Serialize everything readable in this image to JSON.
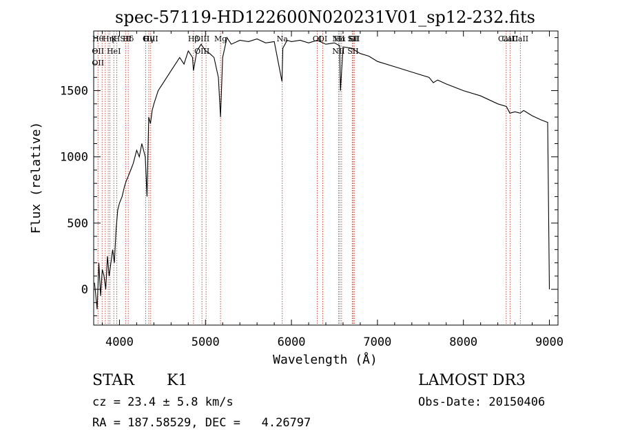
{
  "chart_data": {
    "type": "line",
    "title": "spec-57119-HD122600N020231V01_sp12-232.fits",
    "xlabel": "Wavelength (Å)",
    "ylabel": "Flux (relative)",
    "xlim": [
      3700,
      9100
    ],
    "ylim": [
      -270,
      1950
    ],
    "x_ticks": [
      4000,
      5000,
      6000,
      7000,
      8000,
      9000
    ],
    "y_ticks": [
      0,
      500,
      1000,
      1500
    ],
    "grid": false,
    "series": [
      {
        "x": [
          3710,
          3740,
          3760,
          3780,
          3800,
          3820,
          3840,
          3860,
          3880,
          3900,
          3920,
          3940,
          3960,
          3980,
          4000,
          4030,
          4060,
          4080,
          4100,
          4130,
          4160,
          4200,
          4230,
          4260,
          4300,
          4320,
          4340,
          4360,
          4380,
          4400,
          4450,
          4500,
          4550,
          4600,
          4650,
          4700,
          4750,
          4800,
          4850,
          4860,
          4900,
          4950,
          5000,
          5050,
          5100,
          5150,
          5175,
          5200,
          5250,
          5300,
          5400,
          5500,
          5600,
          5700,
          5800,
          5890,
          5900,
          5950,
          6000,
          6100,
          6200,
          6300,
          6400,
          6500,
          6560,
          6570,
          6600,
          6700,
          6800,
          6900,
          7000,
          7200,
          7400,
          7600,
          7650,
          7700,
          7800,
          8000,
          8200,
          8400,
          8500,
          8540,
          8600,
          8660,
          8700,
          8800,
          8900,
          8980,
          9000
        ],
        "y": [
          50,
          -150,
          200,
          -50,
          150,
          100,
          0,
          250,
          100,
          200,
          300,
          200,
          450,
          600,
          650,
          700,
          780,
          820,
          850,
          900,
          950,
          1050,
          1000,
          1100,
          1000,
          700,
          1300,
          1250,
          1350,
          1400,
          1500,
          1550,
          1600,
          1650,
          1700,
          1750,
          1700,
          1800,
          1750,
          1650,
          1800,
          1850,
          1800,
          1780,
          1750,
          1600,
          1300,
          1750,
          1900,
          1850,
          1880,
          1870,
          1890,
          1860,
          1870,
          1570,
          1820,
          1880,
          1870,
          1880,
          1860,
          1880,
          1850,
          1860,
          1840,
          1500,
          1830,
          1820,
          1780,
          1760,
          1720,
          1680,
          1640,
          1600,
          1560,
          1580,
          1550,
          1500,
          1460,
          1400,
          1380,
          1330,
          1340,
          1330,
          1350,
          1310,
          1280,
          1260,
          0
        ]
      }
    ],
    "lines": [
      {
        "x": 3750,
        "labels": [
          "Hθ",
          "OII",
          "OII"
        ]
      },
      {
        "x": 3798,
        "labels": []
      },
      {
        "x": 3835,
        "labels": []
      },
      {
        "x": 3869,
        "labels": [
          "Hη"
        ]
      },
      {
        "x": 3889,
        "labels": []
      },
      {
        "x": 3934,
        "labels": [
          "K",
          "HeI"
        ]
      },
      {
        "x": 3969,
        "labels": [
          "H"
        ]
      },
      {
        "x": 4071,
        "labels": [
          "SII"
        ]
      },
      {
        "x": 4102,
        "labels": [
          "Hδ"
        ]
      },
      {
        "x": 4304,
        "labels": [
          "G"
        ]
      },
      {
        "x": 4341,
        "labels": [
          "Hγ"
        ]
      },
      {
        "x": 4363,
        "labels": [
          "OIII"
        ]
      },
      {
        "x": 4861,
        "labels": [
          "Hβ"
        ]
      },
      {
        "x": 4959,
        "labels": [
          "OIII",
          "OIII"
        ]
      },
      {
        "x": 5007,
        "labels": []
      },
      {
        "x": 5175,
        "labels": [
          "Mg"
        ]
      },
      {
        "x": 5893,
        "labels": [
          "Na"
        ]
      },
      {
        "x": 6300,
        "labels": [
          "OI"
        ]
      },
      {
        "x": 6364,
        "labels": [
          "OI"
        ]
      },
      {
        "x": 6548,
        "labels": [
          "NII",
          "NII"
        ]
      },
      {
        "x": 6563,
        "labels": [
          "Hα"
        ]
      },
      {
        "x": 6583,
        "labels": []
      },
      {
        "x": 6707,
        "labels": [
          "Li"
        ]
      },
      {
        "x": 6716,
        "labels": [
          "SII",
          "SII"
        ]
      },
      {
        "x": 6731,
        "labels": [
          "SII"
        ]
      },
      {
        "x": 8498,
        "labels": [
          "CaII"
        ]
      },
      {
        "x": 8542,
        "labels": [
          "CaII"
        ]
      },
      {
        "x": 8662,
        "labels": [
          "CaII"
        ]
      }
    ]
  },
  "info": {
    "object_class": "STAR",
    "subclass": "K1",
    "survey": "LAMOST DR3",
    "cz": "cz = 23.4 ± 5.8 km/s",
    "obs_date": "Obs-Date: 20150406",
    "coords": "RA = 187.58529, DEC =   4.26797"
  }
}
